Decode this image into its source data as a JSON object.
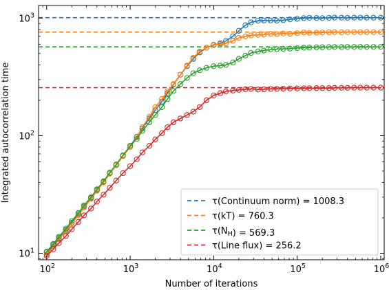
{
  "chart_data": {
    "type": "line",
    "xscale": "log",
    "yscale": "log",
    "xlabel": "Number of iterations",
    "ylabel": "Integrated autocorrelation time",
    "xlim": [
      80,
      1100000
    ],
    "ylim": [
      8.8,
      1280
    ],
    "x_ticks": [
      {
        "value": 100,
        "base": "10",
        "exp": "2"
      },
      {
        "value": 1000,
        "base": "10",
        "exp": "3"
      },
      {
        "value": 10000,
        "base": "10",
        "exp": "4"
      },
      {
        "value": 100000,
        "base": "10",
        "exp": "5"
      },
      {
        "value": 1000000,
        "base": "10",
        "exp": "6"
      }
    ],
    "y_ticks": [
      {
        "value": 10,
        "base": "10",
        "exp": "1"
      },
      {
        "value": 100,
        "base": "10",
        "exp": "2"
      },
      {
        "value": 1000,
        "base": "10",
        "exp": "3"
      }
    ],
    "grid": false,
    "legend_position": "lower-right",
    "series": [
      {
        "name_parts": [
          {
            "t": "τ(Continuum norm) = 1008.3"
          }
        ],
        "color": "#1f77b4",
        "tau": 1008.3,
        "points": [
          [
            100,
            10.2
          ],
          [
            120,
            11.8
          ],
          [
            140,
            13.5
          ],
          [
            170,
            15.8
          ],
          [
            200,
            18.2
          ],
          [
            240,
            21.5
          ],
          [
            280,
            25
          ],
          [
            340,
            29.5
          ],
          [
            400,
            34.5
          ],
          [
            480,
            40.5
          ],
          [
            570,
            48
          ],
          [
            680,
            56
          ],
          [
            820,
            68
          ],
          [
            1000,
            82
          ],
          [
            1200,
            98
          ],
          [
            1400,
            115
          ],
          [
            1700,
            140
          ],
          [
            2000,
            165
          ],
          [
            2400,
            195
          ],
          [
            2800,
            230
          ],
          [
            3300,
            272
          ],
          [
            4000,
            330
          ],
          [
            4800,
            390
          ],
          [
            5700,
            450
          ],
          [
            6800,
            510
          ],
          [
            8200,
            560
          ],
          [
            10000,
            590
          ],
          [
            12000,
            610
          ],
          [
            14000,
            640
          ],
          [
            17000,
            700
          ],
          [
            20000,
            780
          ],
          [
            24000,
            870
          ],
          [
            28000,
            920
          ],
          [
            34000,
            950
          ],
          [
            40000,
            955
          ],
          [
            48000,
            955
          ],
          [
            57000,
            950
          ],
          [
            68000,
            960
          ],
          [
            82000,
            975
          ],
          [
            100000,
            985
          ],
          [
            120000,
            1000
          ],
          [
            140000,
            1005
          ],
          [
            170000,
            1002
          ],
          [
            200000,
            1000
          ],
          [
            240000,
            1005
          ],
          [
            280000,
            1010
          ],
          [
            340000,
            1008
          ],
          [
            400000,
            1005
          ],
          [
            480000,
            1008
          ],
          [
            570000,
            1010
          ],
          [
            680000,
            1008
          ],
          [
            820000,
            1008
          ],
          [
            1000000,
            1008
          ]
        ]
      },
      {
        "name_parts": [
          {
            "t": "τ(kT) = 760.3"
          }
        ],
        "color": "#ff7f0e",
        "tau": 760.3,
        "points": [
          [
            100,
            9.8
          ],
          [
            120,
            11.5
          ],
          [
            140,
            13.2
          ],
          [
            170,
            15.5
          ],
          [
            200,
            18
          ],
          [
            240,
            21
          ],
          [
            280,
            24.5
          ],
          [
            340,
            29
          ],
          [
            400,
            34
          ],
          [
            480,
            40
          ],
          [
            570,
            47.5
          ],
          [
            680,
            56
          ],
          [
            820,
            67
          ],
          [
            1000,
            80
          ],
          [
            1200,
            97
          ],
          [
            1400,
            118
          ],
          [
            1700,
            145
          ],
          [
            2000,
            175
          ],
          [
            2400,
            205
          ],
          [
            2800,
            238
          ],
          [
            3300,
            275
          ],
          [
            4000,
            330
          ],
          [
            4800,
            395
          ],
          [
            5700,
            460
          ],
          [
            6800,
            520
          ],
          [
            8200,
            560
          ],
          [
            10000,
            595
          ],
          [
            12000,
            600
          ],
          [
            14000,
            610
          ],
          [
            17000,
            640
          ],
          [
            20000,
            680
          ],
          [
            24000,
            700
          ],
          [
            28000,
            712
          ],
          [
            34000,
            720
          ],
          [
            40000,
            725
          ],
          [
            48000,
            735
          ],
          [
            57000,
            730
          ],
          [
            68000,
            740
          ],
          [
            82000,
            735
          ],
          [
            100000,
            745
          ],
          [
            120000,
            755
          ],
          [
            140000,
            750
          ],
          [
            170000,
            752
          ],
          [
            200000,
            755
          ],
          [
            240000,
            758
          ],
          [
            280000,
            760
          ],
          [
            340000,
            758
          ],
          [
            400000,
            760
          ],
          [
            480000,
            760
          ],
          [
            570000,
            760
          ],
          [
            680000,
            761
          ],
          [
            820000,
            760
          ],
          [
            1000000,
            760
          ]
        ]
      },
      {
        "name_parts": [
          {
            "t": "τ(N"
          },
          {
            "t": "H",
            "sub": true
          },
          {
            "t": ") = 569.3"
          }
        ],
        "color": "#2ca02c",
        "tau": 569.3,
        "points": [
          [
            100,
            10.3
          ],
          [
            120,
            12
          ],
          [
            140,
            13.8
          ],
          [
            170,
            16.2
          ],
          [
            200,
            18.8
          ],
          [
            240,
            22
          ],
          [
            280,
            25.5
          ],
          [
            340,
            30
          ],
          [
            400,
            35
          ],
          [
            480,
            41
          ],
          [
            570,
            48.5
          ],
          [
            680,
            57
          ],
          [
            820,
            68
          ],
          [
            1000,
            82
          ],
          [
            1200,
            94
          ],
          [
            1400,
            110
          ],
          [
            1700,
            130
          ],
          [
            2000,
            150
          ],
          [
            2400,
            175
          ],
          [
            2800,
            205
          ],
          [
            3300,
            240
          ],
          [
            4000,
            275
          ],
          [
            4800,
            310
          ],
          [
            5700,
            340
          ],
          [
            6800,
            360
          ],
          [
            8200,
            378
          ],
          [
            10000,
            390
          ],
          [
            12000,
            395
          ],
          [
            14000,
            400
          ],
          [
            17000,
            420
          ],
          [
            20000,
            450
          ],
          [
            24000,
            480
          ],
          [
            28000,
            505
          ],
          [
            34000,
            520
          ],
          [
            40000,
            530
          ],
          [
            48000,
            540
          ],
          [
            57000,
            545
          ],
          [
            68000,
            548
          ],
          [
            82000,
            550
          ],
          [
            100000,
            555
          ],
          [
            120000,
            560
          ],
          [
            140000,
            562
          ],
          [
            170000,
            565
          ],
          [
            200000,
            566
          ],
          [
            240000,
            567
          ],
          [
            280000,
            568
          ],
          [
            340000,
            568
          ],
          [
            400000,
            569
          ],
          [
            480000,
            569
          ],
          [
            570000,
            570
          ],
          [
            680000,
            569
          ],
          [
            820000,
            569
          ],
          [
            1000000,
            569
          ]
        ]
      },
      {
        "name_parts": [
          {
            "t": "τ(Line flux) = 256.2"
          }
        ],
        "color": "#d62728",
        "tau": 256.2,
        "points": [
          [
            100,
            9.5
          ],
          [
            120,
            10.8
          ],
          [
            140,
            12.2
          ],
          [
            170,
            14
          ],
          [
            200,
            16
          ],
          [
            240,
            18.5
          ],
          [
            280,
            21
          ],
          [
            340,
            24
          ],
          [
            400,
            27.5
          ],
          [
            480,
            31.5
          ],
          [
            570,
            36
          ],
          [
            680,
            41.5
          ],
          [
            820,
            48
          ],
          [
            1000,
            55
          ],
          [
            1200,
            63
          ],
          [
            1400,
            72
          ],
          [
            1700,
            82
          ],
          [
            2000,
            93
          ],
          [
            2400,
            105
          ],
          [
            2800,
            118
          ],
          [
            3300,
            130
          ],
          [
            4000,
            140
          ],
          [
            4800,
            150
          ],
          [
            5700,
            160
          ],
          [
            6800,
            175
          ],
          [
            8200,
            200
          ],
          [
            10000,
            220
          ],
          [
            12000,
            230
          ],
          [
            14000,
            238
          ],
          [
            17000,
            242
          ],
          [
            20000,
            245
          ],
          [
            24000,
            248
          ],
          [
            28000,
            250
          ],
          [
            34000,
            247
          ],
          [
            40000,
            248
          ],
          [
            48000,
            250
          ],
          [
            57000,
            250
          ],
          [
            68000,
            251
          ],
          [
            82000,
            252
          ],
          [
            100000,
            252
          ],
          [
            120000,
            253
          ],
          [
            140000,
            253
          ],
          [
            170000,
            254
          ],
          [
            200000,
            254
          ],
          [
            240000,
            254
          ],
          [
            280000,
            255
          ],
          [
            340000,
            255
          ],
          [
            400000,
            255
          ],
          [
            480000,
            256
          ],
          [
            570000,
            256
          ],
          [
            680000,
            256
          ],
          [
            820000,
            256
          ],
          [
            1000000,
            256
          ]
        ]
      }
    ]
  }
}
